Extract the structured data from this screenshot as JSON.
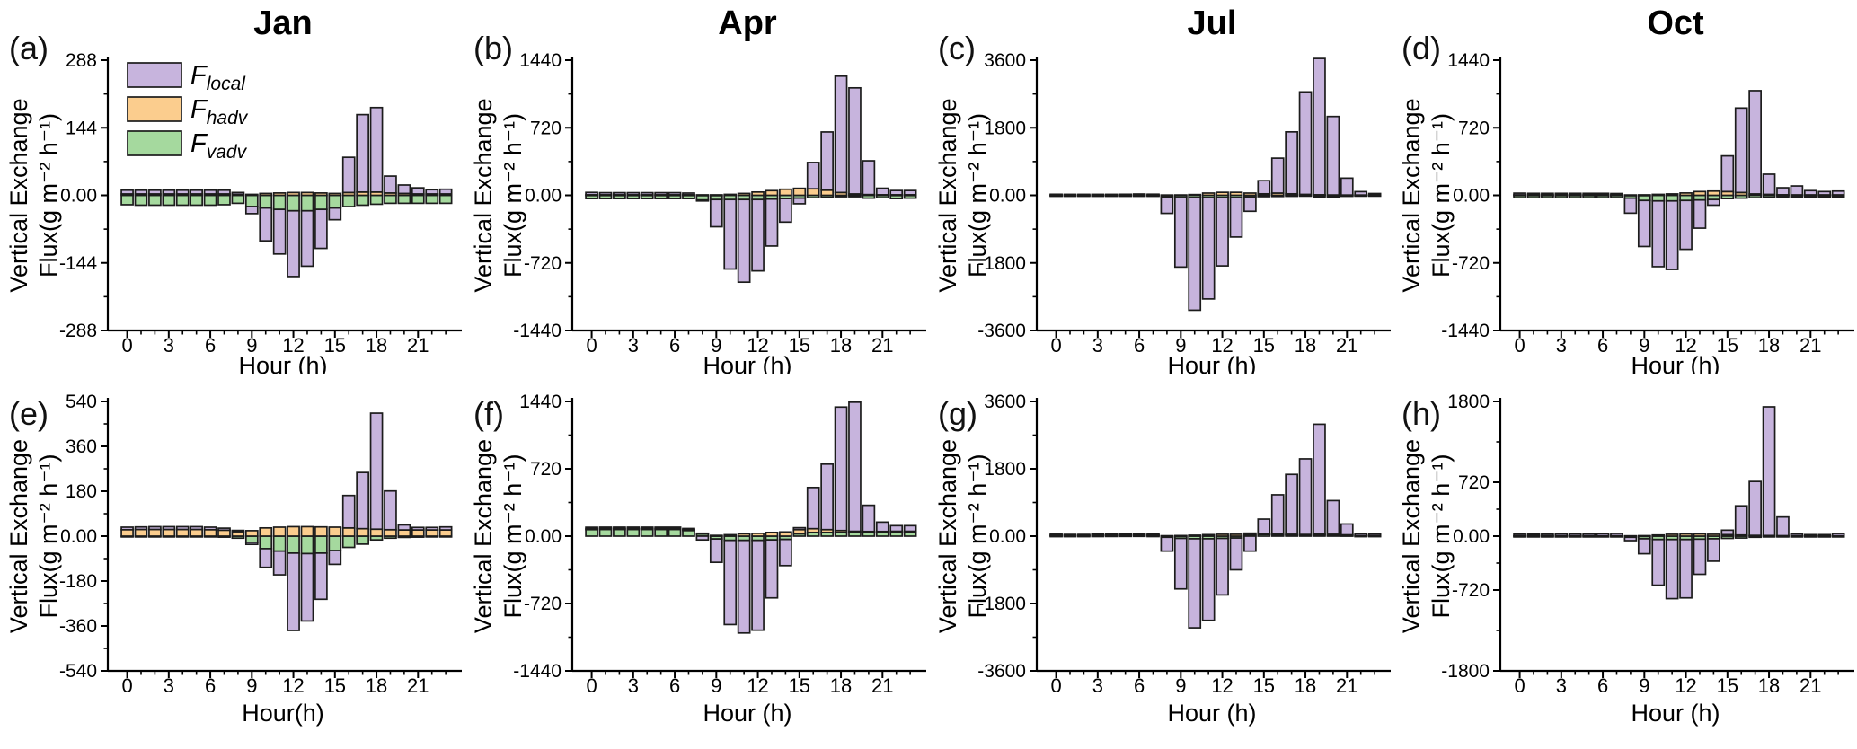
{
  "figure": {
    "description": "Diurnal vertical exchange flux stacked bar figure, 8 panels (a-h), columns Jan/Apr/Jul/Oct",
    "ylabel_line1": "Vertical Exchange",
    "ylabel_line2": "Flux(g m⁻² h⁻¹)"
  },
  "legend": {
    "items": [
      {
        "symbol": "F",
        "sub": "local",
        "color": "#c7b4dd"
      },
      {
        "symbol": "F",
        "sub": "hadv",
        "color": "#fbcd8e"
      },
      {
        "symbol": "F",
        "sub": "vadv",
        "color": "#a5d99e"
      }
    ]
  },
  "chart_data": {
    "type": "bar",
    "stacked": true,
    "grid": false,
    "bar_edge_color": "#1c1c1c",
    "series_colors": {
      "local": "#c7b4dd",
      "hadv": "#fbcd8e",
      "vadv": "#a5d99e"
    },
    "x_hours": [
      0,
      1,
      2,
      3,
      4,
      5,
      6,
      7,
      8,
      9,
      10,
      11,
      12,
      13,
      14,
      15,
      16,
      17,
      18,
      19,
      20,
      21,
      22,
      23
    ],
    "xticks": [
      0,
      3,
      6,
      9,
      12,
      15,
      18,
      21
    ],
    "panels": [
      {
        "id": "a",
        "letter": "(a)",
        "title": "Jan",
        "row": 0,
        "col": 0,
        "xlabel": "Hour (h)",
        "ylim": 288,
        "yticks": [
          288,
          144,
          0,
          -144,
          -288
        ],
        "ytick_labels": [
          "288",
          "144",
          "0.00",
          "-144",
          "-288"
        ],
        "show_legend": true,
        "series": {
          "local": [
            8,
            8,
            8,
            8,
            8,
            8,
            8,
            8,
            4,
            -15,
            -70,
            -95,
            -140,
            -118,
            -83,
            -25,
            75,
            165,
            180,
            36,
            18,
            13,
            9,
            10
          ],
          "hadv": [
            3,
            3,
            3,
            3,
            3,
            3,
            3,
            3,
            2,
            2,
            4,
            5,
            6,
            6,
            5,
            4,
            6,
            7,
            7,
            5,
            4,
            3,
            3,
            3
          ],
          "vadv": [
            -20,
            -21,
            -21,
            -21,
            -21,
            -21,
            -21,
            -20,
            -17,
            -24,
            -27,
            -30,
            -33,
            -33,
            -30,
            -27,
            -24,
            -21,
            -19,
            -17,
            -17,
            -17,
            -17,
            -17
          ]
        }
      },
      {
        "id": "b",
        "letter": "(b)",
        "title": "Apr",
        "row": 0,
        "col": 1,
        "xlabel": "Hour (h)",
        "ylim": 1440,
        "yticks": [
          1440,
          720,
          0,
          -720,
          -1440
        ],
        "ytick_labels": [
          "1440",
          "720",
          "0.00",
          "-720",
          "-1440"
        ],
        "show_legend": false,
        "series": {
          "local": [
            25,
            22,
            22,
            22,
            22,
            22,
            22,
            18,
            -10,
            -290,
            -740,
            -880,
            -760,
            -500,
            -250,
            -60,
            280,
            620,
            1240,
            1130,
            360,
            70,
            45,
            45
          ],
          "hadv": [
            6,
            6,
            6,
            6,
            6,
            6,
            6,
            6,
            5,
            5,
            10,
            20,
            35,
            50,
            65,
            75,
            70,
            55,
            30,
            15,
            8,
            6,
            6,
            6
          ],
          "vadv": [
            -35,
            -35,
            -35,
            -35,
            -35,
            -35,
            -35,
            -35,
            -50,
            -45,
            -45,
            -45,
            -45,
            -40,
            -35,
            -30,
            -25,
            -20,
            -15,
            -15,
            -30,
            -25,
            -35,
            -30
          ]
        }
      },
      {
        "id": "c",
        "letter": "(c)",
        "title": "Jul",
        "row": 0,
        "col": 2,
        "xlabel": "Hour (h)",
        "ylim": 3600,
        "yticks": [
          3600,
          1800,
          0,
          -1800,
          -3600
        ],
        "ytick_labels": [
          "3600",
          "1800",
          "0.00",
          "-1800",
          "-3600"
        ],
        "show_legend": false,
        "series": {
          "local": [
            20,
            18,
            18,
            18,
            18,
            20,
            25,
            20,
            -430,
            -1850,
            -3000,
            -2700,
            -1820,
            -1050,
            -380,
            350,
            930,
            1650,
            2730,
            3630,
            2090,
            450,
            90,
            40
          ],
          "hadv": [
            8,
            8,
            8,
            8,
            8,
            8,
            10,
            10,
            8,
            10,
            20,
            60,
            80,
            80,
            60,
            40,
            60,
            40,
            25,
            15,
            10,
            8,
            8,
            8
          ],
          "vadv": [
            -25,
            -25,
            -25,
            -25,
            -25,
            -25,
            -25,
            -25,
            -50,
            -60,
            -60,
            -60,
            -60,
            -60,
            -45,
            -35,
            -30,
            -25,
            -20,
            -40,
            -40,
            -25,
            -20,
            -20
          ]
        }
      },
      {
        "id": "d",
        "letter": "(d)",
        "title": "Oct",
        "row": 0,
        "col": 3,
        "xlabel": "Hour (h)",
        "ylim": 1440,
        "yticks": [
          1440,
          720,
          0,
          -720,
          -1440
        ],
        "ytick_labels": [
          "1440",
          "720",
          "0.00",
          "-720",
          "-1440"
        ],
        "show_legend": false,
        "series": {
          "local": [
            18,
            16,
            16,
            16,
            16,
            16,
            16,
            14,
            -160,
            -490,
            -700,
            -730,
            -520,
            -300,
            -60,
            380,
            900,
            1100,
            215,
            75,
            95,
            45,
            35,
            40
          ],
          "hadv": [
            5,
            5,
            5,
            5,
            5,
            5,
            5,
            5,
            4,
            5,
            10,
            15,
            25,
            40,
            45,
            40,
            30,
            15,
            10,
            6,
            5,
            5,
            5,
            5
          ],
          "vadv": [
            -25,
            -25,
            -25,
            -25,
            -25,
            -25,
            -25,
            -24,
            -30,
            -55,
            -60,
            -60,
            -55,
            -50,
            -45,
            -35,
            -30,
            -25,
            -20,
            -18,
            -18,
            -18,
            -18,
            -18
          ]
        }
      },
      {
        "id": "e",
        "letter": "(e)",
        "title": "",
        "row": 1,
        "col": 0,
        "xlabel": "Hour(h)",
        "ylim": 540,
        "yticks": [
          540,
          360,
          180,
          0,
          -180,
          -360,
          -540
        ],
        "ytick_labels": [
          "540",
          "360",
          "180",
          "0.00",
          "-180",
          "-360",
          "-540"
        ],
        "show_legend": false,
        "series": {
          "local": [
            10,
            10,
            11,
            11,
            11,
            11,
            10,
            8,
            5,
            -8,
            -75,
            -95,
            -310,
            -270,
            -185,
            -55,
            130,
            225,
            465,
            155,
            20,
            10,
            10,
            12
          ],
          "hadv": [
            26,
            27,
            27,
            27,
            27,
            27,
            26,
            24,
            18,
            22,
            33,
            36,
            38,
            38,
            37,
            36,
            33,
            30,
            28,
            26,
            25,
            25,
            25,
            25
          ],
          "vadv": [
            -3,
            -2,
            -2,
            -2,
            -2,
            -2,
            -3,
            -4,
            -8,
            -25,
            -50,
            -60,
            -68,
            -70,
            -68,
            -58,
            -45,
            -32,
            -15,
            -8,
            -5,
            -4,
            -3,
            -3
          ]
        }
      },
      {
        "id": "f",
        "letter": "(f)",
        "title": "",
        "row": 1,
        "col": 1,
        "xlabel": "Hour (h)",
        "ylim": 1440,
        "yticks": [
          1440,
          720,
          0,
          -720,
          -1440
        ],
        "ytick_labels": [
          "1440",
          "720",
          "0.00",
          "-720",
          "-1440"
        ],
        "show_legend": false,
        "series": {
          "local": [
            15,
            14,
            14,
            14,
            14,
            14,
            14,
            12,
            -40,
            -250,
            -900,
            -990,
            -960,
            -620,
            -280,
            20,
            440,
            700,
            1320,
            1380,
            280,
            100,
            60,
            60
          ],
          "hadv": [
            10,
            10,
            10,
            10,
            10,
            10,
            10,
            10,
            6,
            8,
            15,
            25,
            30,
            40,
            45,
            45,
            40,
            30,
            20,
            12,
            10,
            10,
            10,
            10
          ],
          "vadv": [
            70,
            72,
            72,
            72,
            72,
            72,
            72,
            60,
            25,
            -30,
            -45,
            -45,
            -45,
            -40,
            -35,
            25,
            40,
            40,
            40,
            40,
            40,
            40,
            42,
            42
          ]
        }
      },
      {
        "id": "g",
        "letter": "(g)",
        "title": "",
        "row": 1,
        "col": 2,
        "xlabel": "Hour (h)",
        "ylim": 3600,
        "yticks": [
          3600,
          1800,
          0,
          -1800,
          -3600
        ],
        "ytick_labels": [
          "3600",
          "1800",
          "0.00",
          "-1800",
          "-3600"
        ],
        "show_legend": false,
        "series": {
          "local": [
            25,
            22,
            22,
            25,
            28,
            30,
            35,
            30,
            -370,
            -1350,
            -2380,
            -2180,
            -1510,
            -850,
            -400,
            380,
            1050,
            1600,
            2020,
            2930,
            900,
            290,
            50,
            45
          ],
          "hadv": [
            18,
            16,
            16,
            18,
            20,
            22,
            25,
            20,
            10,
            15,
            25,
            40,
            50,
            50,
            40,
            30,
            25,
            20,
            20,
            30,
            20,
            15,
            10,
            10
          ],
          "vadv": [
            8,
            8,
            8,
            10,
            12,
            14,
            15,
            10,
            -30,
            -60,
            -70,
            -70,
            -60,
            -50,
            40,
            45,
            30,
            30,
            25,
            30,
            30,
            20,
            8,
            8
          ]
        }
      },
      {
        "id": "h",
        "letter": "(h)",
        "title": "",
        "row": 1,
        "col": 3,
        "xlabel": "Hour (h)",
        "ylim": 1800,
        "yticks": [
          1800,
          720,
          0,
          -720,
          -1800
        ],
        "ytick_labels": [
          "1800",
          "720",
          "0.00",
          "-720",
          "-1800"
        ],
        "show_legend": false,
        "series": {
          "local": [
            22,
            20,
            22,
            25,
            25,
            25,
            28,
            30,
            -45,
            -200,
            -610,
            -790,
            -780,
            -470,
            -300,
            60,
            390,
            720,
            1720,
            250,
            25,
            15,
            15,
            30
          ],
          "hadv": [
            6,
            6,
            6,
            6,
            6,
            6,
            6,
            6,
            4,
            6,
            15,
            25,
            30,
            30,
            25,
            20,
            15,
            10,
            8,
            6,
            5,
            5,
            5,
            5
          ],
          "vadv": [
            -8,
            -8,
            -8,
            -8,
            -8,
            -8,
            -8,
            -8,
            -15,
            -35,
            -45,
            -45,
            -45,
            -40,
            -35,
            -30,
            -25,
            -15,
            -10,
            -8,
            -6,
            -6,
            -6,
            -6
          ]
        }
      }
    ]
  }
}
